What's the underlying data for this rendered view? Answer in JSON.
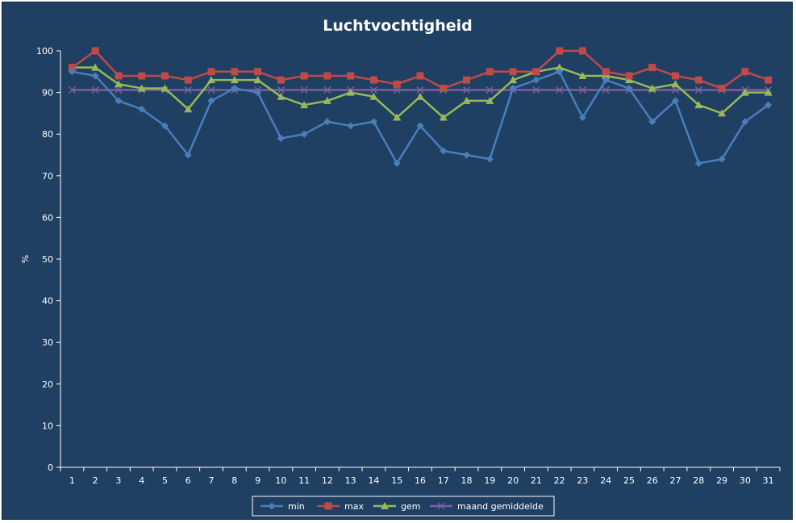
{
  "chart_data": {
    "type": "line",
    "title": "Luchtvochtigheid",
    "xlabel": "",
    "ylabel": "%",
    "ylim": [
      0,
      100
    ],
    "yticks": [
      0,
      10,
      20,
      30,
      40,
      50,
      60,
      70,
      80,
      90,
      100
    ],
    "categories": [
      "1",
      "2",
      "3",
      "4",
      "5",
      "6",
      "7",
      "8",
      "9",
      "10",
      "11",
      "12",
      "13",
      "14",
      "15",
      "16",
      "17",
      "18",
      "19",
      "20",
      "21",
      "22",
      "23",
      "24",
      "25",
      "26",
      "27",
      "28",
      "29",
      "30",
      "31"
    ],
    "grid": false,
    "legend_position": "bottom",
    "series": [
      {
        "name": "min",
        "color": "#4a7ebb",
        "marker": "diamond",
        "values": [
          95,
          94,
          88,
          86,
          82,
          75,
          88,
          91,
          90,
          79,
          80,
          83,
          82,
          83,
          73,
          82,
          76,
          75,
          74,
          91,
          93,
          95,
          84,
          93,
          91,
          83,
          88,
          73,
          74,
          83,
          87
        ]
      },
      {
        "name": "max",
        "color": "#be4b48",
        "marker": "square",
        "values": [
          96,
          100,
          94,
          94,
          94,
          93,
          95,
          95,
          95,
          93,
          94,
          94,
          94,
          93,
          92,
          94,
          91,
          93,
          95,
          95,
          95,
          100,
          100,
          95,
          94,
          96,
          94,
          93,
          91,
          95,
          93
        ]
      },
      {
        "name": "gem",
        "color": "#98b954",
        "marker": "triangle",
        "values": [
          96,
          96,
          92,
          91,
          91,
          86,
          93,
          93,
          93,
          89,
          87,
          88,
          90,
          89,
          84,
          89,
          84,
          88,
          88,
          93,
          95,
          96,
          94,
          94,
          93,
          91,
          92,
          87,
          85,
          90,
          90
        ]
      },
      {
        "name": "maand gemiddelde",
        "color": "#7d60a0",
        "marker": "x",
        "values": [
          90.6,
          90.6,
          90.6,
          90.6,
          90.6,
          90.6,
          90.6,
          90.6,
          90.6,
          90.6,
          90.6,
          90.6,
          90.6,
          90.6,
          90.6,
          90.6,
          90.6,
          90.6,
          90.6,
          90.6,
          90.6,
          90.6,
          90.6,
          90.6,
          90.6,
          90.6,
          90.6,
          90.6,
          90.6,
          90.6,
          90.6
        ]
      }
    ]
  }
}
